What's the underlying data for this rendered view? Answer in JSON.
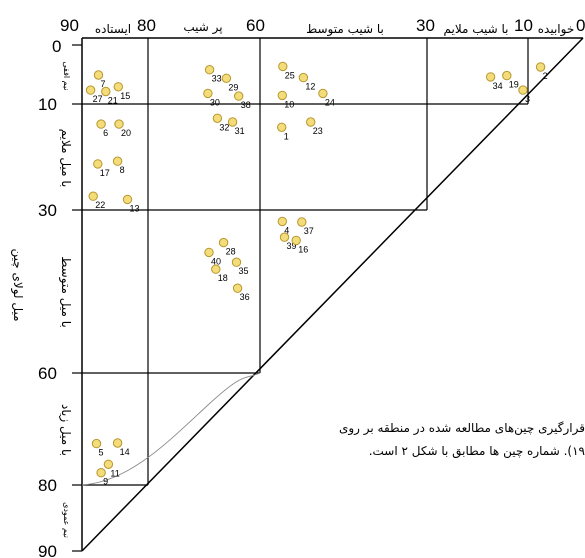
{
  "top_axis": [
    "90",
    "80",
    "60",
    "30",
    "10",
    "0"
  ],
  "left_axis": [
    "0",
    "10",
    "30",
    "60",
    "80",
    "90"
  ],
  "top_zones": [
    "ایستاده",
    "پر شیب",
    "با شیب متوسط",
    "با شیب ملایم",
    "خوابیده"
  ],
  "left_zones": {
    "horizontal": "نیم افقی",
    "gentle": "با میل ملایم",
    "moderate": "با میل متوسط",
    "steep": "با میل زیاد",
    "vertical": "نیم عمودی"
  },
  "y_axis_title": "میل لولای چین",
  "caption": {
    "line1": "قرارگیری چین‌های مطالعه شده در منطقه بر روی",
    "line2": "۱۹). شماره چین ها مطابق با شکل ۲ است."
  },
  "colors": {
    "point_fill": "#f3dc7a",
    "point_stroke": "#b8962e",
    "line": "#000000"
  },
  "chart_data": {
    "type": "scatter",
    "x_label": "",
    "y_label": "میل لولای چین",
    "xlim": [
      90,
      0
    ],
    "ylim": [
      0,
      90
    ],
    "points": [
      {
        "label": "7",
        "x": 87.5,
        "y": 5.6
      },
      {
        "label": "15",
        "x": 84.5,
        "y": 7.4
      },
      {
        "label": "27",
        "x": 88.7,
        "y": 7.9
      },
      {
        "label": "21",
        "x": 86.4,
        "y": 8.1
      },
      {
        "label": "6",
        "x": 87.1,
        "y": 13.8
      },
      {
        "label": "20",
        "x": 84.4,
        "y": 13.8
      },
      {
        "label": "17",
        "x": 87.6,
        "y": 21.3
      },
      {
        "label": "8",
        "x": 84.6,
        "y": 20.8
      },
      {
        "label": "22",
        "x": 88.3,
        "y": 27.4
      },
      {
        "label": "13",
        "x": 83.1,
        "y": 28.0
      },
      {
        "label": "5",
        "x": 87.8,
        "y": 72.6
      },
      {
        "label": "14",
        "x": 84.6,
        "y": 72.5
      },
      {
        "label": "11",
        "x": 86.0,
        "y": 76.3
      },
      {
        "label": "9",
        "x": 87.1,
        "y": 77.8
      },
      {
        "label": "33",
        "x": 69.0,
        "y": 4.8
      },
      {
        "label": "29",
        "x": 66.0,
        "y": 6.1
      },
      {
        "label": "30",
        "x": 69.3,
        "y": 8.4
      },
      {
        "label": "38",
        "x": 63.8,
        "y": 8.8
      },
      {
        "label": "32",
        "x": 67.6,
        "y": 12.7
      },
      {
        "label": "31",
        "x": 64.9,
        "y": 13.4
      },
      {
        "label": "28",
        "x": 66.5,
        "y": 36.0
      },
      {
        "label": "40",
        "x": 69.1,
        "y": 37.8
      },
      {
        "label": "18",
        "x": 67.9,
        "y": 40.9
      },
      {
        "label": "35",
        "x": 64.2,
        "y": 39.6
      },
      {
        "label": "36",
        "x": 64.0,
        "y": 44.4
      },
      {
        "label": "25",
        "x": 55.9,
        "y": 4.3
      },
      {
        "label": "12",
        "x": 52.2,
        "y": 6.0
      },
      {
        "label": "10",
        "x": 56.0,
        "y": 8.7
      },
      {
        "label": "24",
        "x": 48.7,
        "y": 8.4
      },
      {
        "label": "1",
        "x": 56.1,
        "y": 14.4
      },
      {
        "label": "23",
        "x": 50.9,
        "y": 13.4
      },
      {
        "label": "4",
        "x": 56.0,
        "y": 32.1
      },
      {
        "label": "37",
        "x": 52.5,
        "y": 32.2
      },
      {
        "label": "39",
        "x": 55.6,
        "y": 35.0
      },
      {
        "label": "16",
        "x": 53.5,
        "y": 35.6
      },
      {
        "label": "34",
        "x": 17.4,
        "y": 5.9
      },
      {
        "label": "19",
        "x": 14.2,
        "y": 5.7
      },
      {
        "label": "3",
        "x": 11.0,
        "y": 7.9
      },
      {
        "label": "2",
        "x": 7.7,
        "y": 4.4
      }
    ]
  }
}
